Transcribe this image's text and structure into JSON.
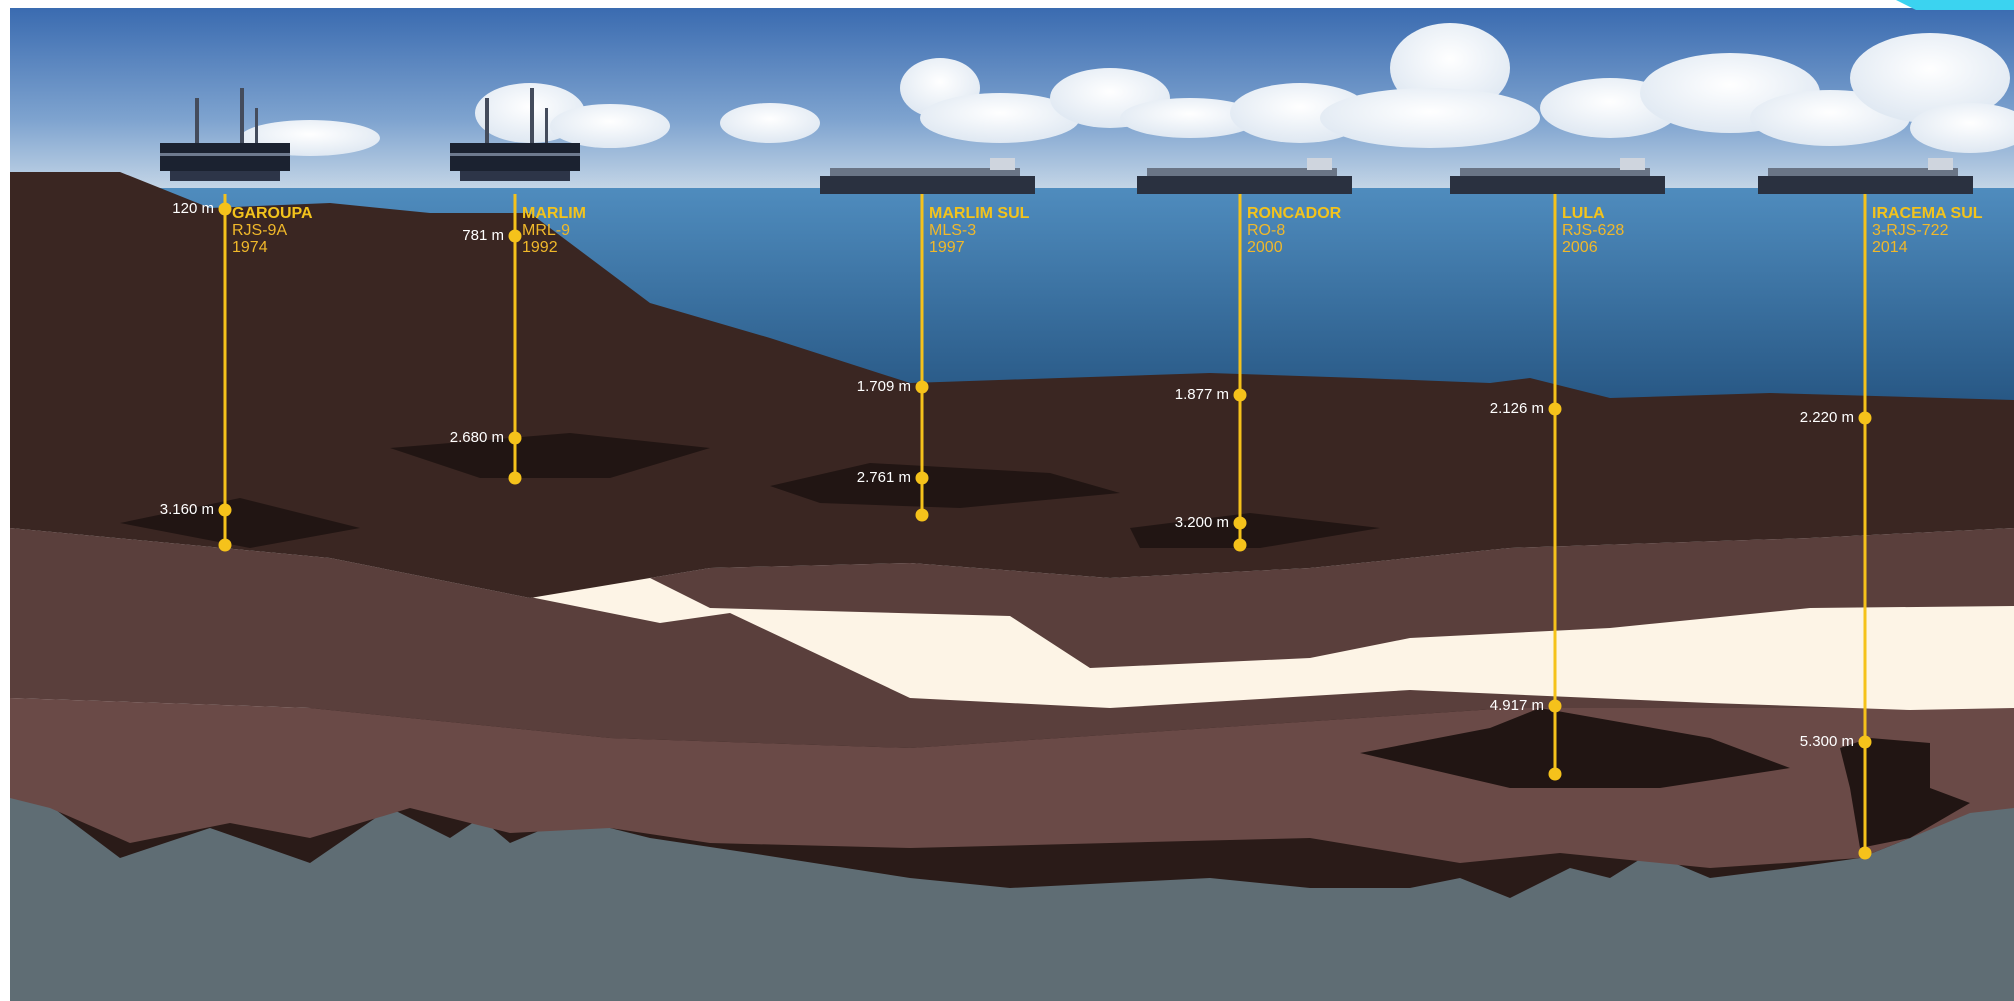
{
  "wells": [
    {
      "name": "GAROUPA",
      "well_code": "RJS-9A",
      "year": "1974",
      "depth_labels": [
        "120 m",
        "3.160 m"
      ],
      "platform_type": "fixed-platform"
    },
    {
      "name": "MARLIM",
      "well_code": "MRL-9",
      "year": "1992",
      "depth_labels": [
        "781 m",
        "2.680 m"
      ],
      "platform_type": "fixed-platform"
    },
    {
      "name": "MARLIM SUL",
      "well_code": "MLS-3",
      "year": "1997",
      "depth_labels": [
        "1.709 m",
        "2.761 m"
      ],
      "platform_type": "fpso-ship"
    },
    {
      "name": "RONCADOR",
      "well_code": "RO-8",
      "year": "2000",
      "depth_labels": [
        "1.877 m",
        "3.200 m"
      ],
      "platform_type": "fpso-ship"
    },
    {
      "name": "LULA",
      "well_code": "RJS-628",
      "year": "2006",
      "depth_labels": [
        "2.126 m",
        "4.917 m"
      ],
      "platform_type": "fpso-ship"
    },
    {
      "name": "IRACEMA SUL",
      "well_code": "3-RJS-722",
      "year": "2014",
      "depth_labels": [
        "2.220 m",
        "5.300 m"
      ],
      "platform_type": "fpso-ship"
    }
  ],
  "colors": {
    "sky_top": "#3d6fb3",
    "sky_bottom": "#c9d9e8",
    "sea_top": "#4a86b8",
    "sea_bottom": "#1f4c78",
    "upper_rock": "#3a2622",
    "reservoir": "#211513",
    "mid_rock": "#5a3f3c",
    "salt_layer": "#fdf4e6",
    "lower_rock": "#6a4a47",
    "deep_dark": "#2a1b18",
    "basement": "#5f6d74",
    "well_line": "#f5c21b",
    "label_yellow": "#f3c31c",
    "depth_text": "#ffffff"
  }
}
